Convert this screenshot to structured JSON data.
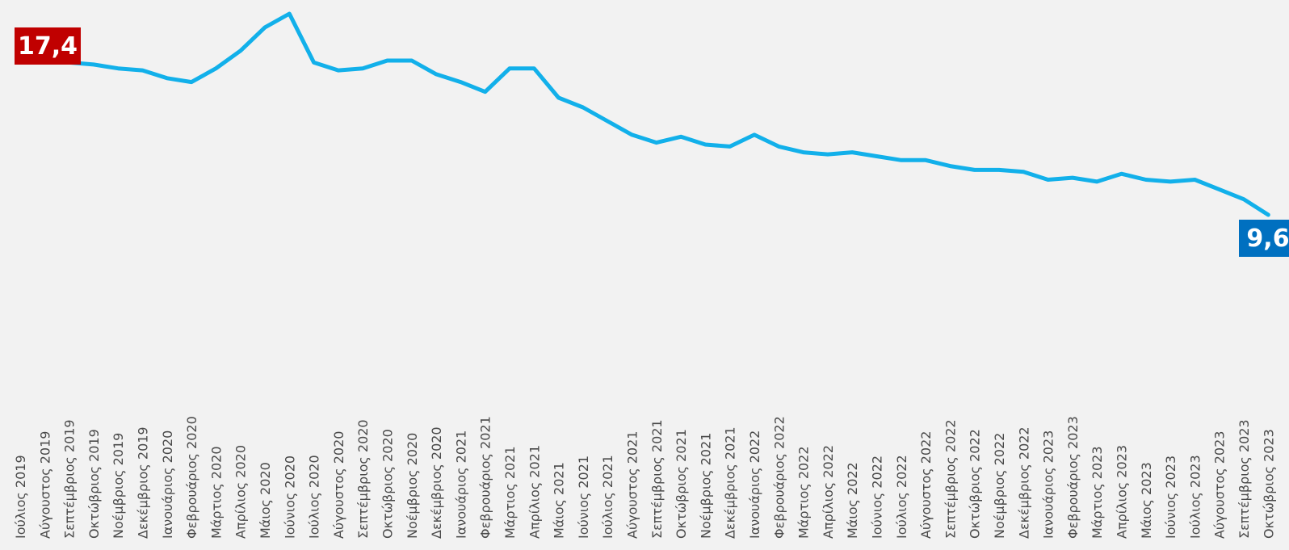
{
  "chart_data": {
    "type": "line",
    "title": "",
    "xlabel": "",
    "ylabel": "",
    "ylim": [
      0,
      18
    ],
    "grid": false,
    "legend": "none",
    "categories": [
      "Ιούλιος 2019",
      "Αύγουστος 2019",
      "Σεπτέμβριος 2019",
      "Οκτώβριος 2019",
      "Νοέμβριος 2019",
      "Δεκέμβριος 2019",
      "Ιανουάριος 2020",
      "Φεβρουάριος 2020",
      "Μάρτιος 2020",
      "Απρίλιος 2020",
      "Μάιος 2020",
      "Ιούνιος 2020",
      "Ιούλιος 2020",
      "Αύγουστος 2020",
      "Σεπτέμβριος 2020",
      "Οκτώβριος 2020",
      "Νοέμβριος 2020",
      "Δεκέμβριος 2020",
      "Ιανουάριος 2021",
      "Φεβρουάριος 2021",
      "Μάρτιος 2021",
      "Απρίλιος 2021",
      "Μάιος 2021",
      "Ιούνιος 2021",
      "Ιούλιος 2021",
      "Αύγουστος 2021",
      "Σεπτέμβριος 2021",
      "Οκτώβριος 2021",
      "Νοέμβριος 2021",
      "Δεκέμβριος 2021",
      "Ιανουάριος 2022",
      "Φεβρουάριος 2022",
      "Μάρτιος 2022",
      "Απρίλιος 2022",
      "Μάιος 2022",
      "Ιούνιος 2022",
      "Ιούλιος 2022",
      "Αύγουστος 2022",
      "Σεπτέμβριος 2022",
      "Οκτώβριος 2022",
      "Νοέμβριος 2022",
      "Δεκέμβριος 2022",
      "Ιανουάριος 2023",
      "Φεβρουάριος 2023",
      "Μάρτιος 2023",
      "Απρίλιος 2023",
      "Μάιος 2023",
      "Ιούνιος 2023",
      "Ιούλιος 2023",
      "Αύγουστος 2023",
      "Σεπτέμβριος 2023",
      "Οκτώβριος 2023"
    ],
    "series": [
      {
        "color": "#12b0ea",
        "values": [
          17.4,
          17.4,
          17.4,
          17.3,
          17.1,
          17.0,
          16.6,
          16.4,
          17.1,
          18.0,
          19.2,
          19.9,
          17.4,
          17.0,
          17.1,
          17.5,
          17.5,
          16.8,
          16.4,
          15.9,
          17.1,
          17.1,
          15.6,
          15.1,
          14.4,
          13.7,
          13.3,
          13.6,
          13.2,
          13.1,
          13.7,
          13.1,
          12.8,
          12.7,
          12.8,
          12.6,
          12.4,
          12.4,
          12.1,
          11.9,
          11.9,
          11.8,
          11.4,
          11.5,
          11.3,
          11.7,
          11.4,
          11.3,
          11.4,
          10.9,
          10.4,
          9.6
        ]
      }
    ],
    "callouts": {
      "first": {
        "text": "17,4",
        "bg": "#c00000"
      },
      "last": {
        "text": "9,6",
        "bg": "#0070c0"
      }
    }
  }
}
